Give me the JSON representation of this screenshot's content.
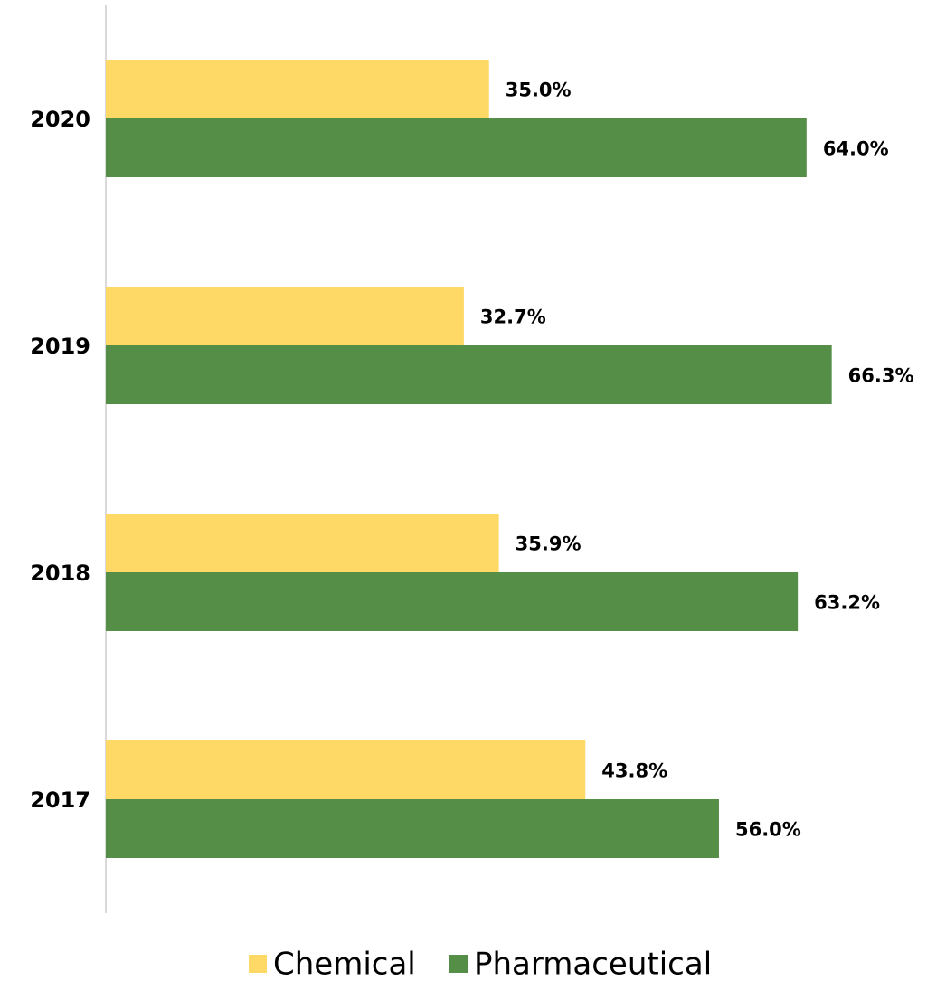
{
  "chart_data": {
    "type": "barh",
    "categories": [
      "2020",
      "2019",
      "2018",
      "2017"
    ],
    "series": [
      {
        "name": "Chemical",
        "color": "#FFD966",
        "values": [
          35.0,
          32.7,
          35.9,
          43.8
        ],
        "value_labels": [
          "35.0%",
          "32.7%",
          "35.9%",
          "43.8%"
        ]
      },
      {
        "name": "Pharmaceutical",
        "color": "#558E47",
        "values": [
          64.0,
          66.3,
          63.2,
          56.0
        ],
        "value_labels": [
          "64.0%",
          "66.3%",
          "63.2%",
          "56.0%"
        ]
      }
    ],
    "xlim": [
      0,
      75
    ],
    "legend": "bottom"
  }
}
